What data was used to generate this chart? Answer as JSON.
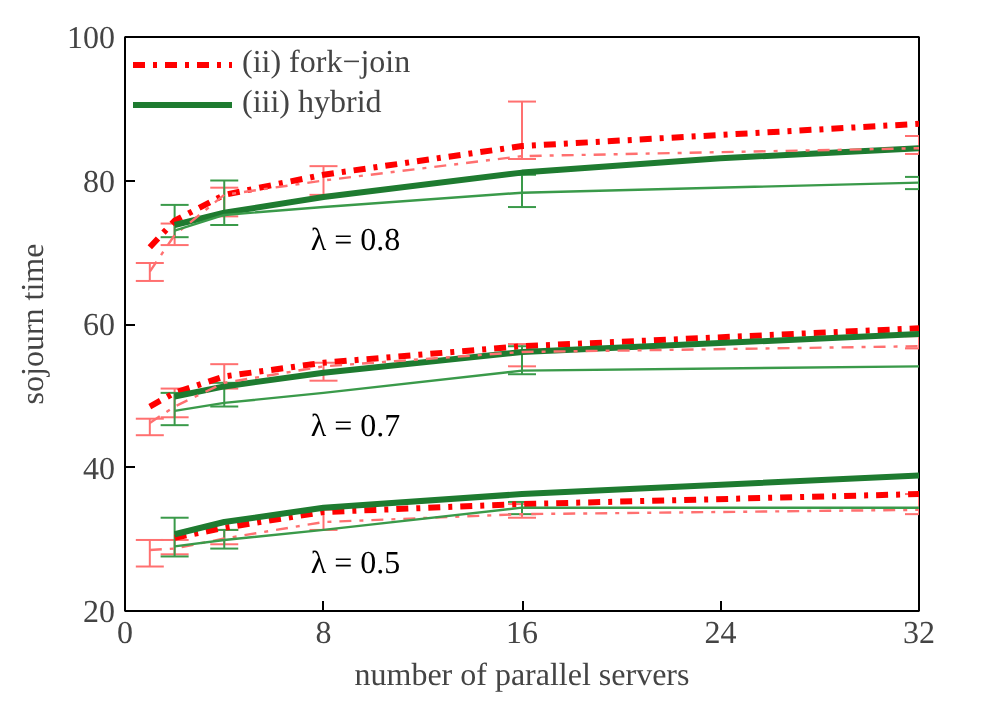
{
  "chart_data": {
    "type": "line",
    "xlabel": "number of parallel servers",
    "ylabel": "sojourn time",
    "xlim": [
      0,
      32
    ],
    "ylim": [
      20,
      100
    ],
    "xticks": [
      0,
      8,
      16,
      24,
      32
    ],
    "yticks": [
      20,
      40,
      60,
      80,
      100
    ],
    "grid": false,
    "legend": "top left",
    "marker": "none",
    "series": [
      {
        "name": "(ii) fork−join",
        "color": "#ff0000",
        "line_style": "dashdot",
        "x": [
          1,
          2,
          4,
          8,
          16,
          32
        ],
        "values": [
          70.7,
          74.4,
          78,
          80.8,
          84.8,
          87.9
        ]
      },
      {
        "name": "(iii) hybrid",
        "color": "#1e7b30",
        "line_style": "solid",
        "x": [
          2,
          4,
          8,
          16,
          24,
          32
        ],
        "values": [
          73.8,
          75.5,
          77.7,
          81.1,
          83.1,
          84.5
        ]
      },
      {
        "color": "#ff7070",
        "line_style": "dashdot",
        "x": [
          1,
          2,
          4,
          8,
          16,
          32
        ],
        "values": [
          67.3,
          72.4,
          78,
          80,
          83.4,
          84.5
        ],
        "errors": [
          [
            66,
            68.5
          ],
          [
            71,
            74
          ],
          [
            75,
            79
          ],
          [
            78,
            82
          ],
          [
            83,
            91
          ],
          [
            83.7,
            86.2
          ]
        ]
      },
      {
        "color": "#3a9a4a",
        "line_style": "solid",
        "x": [
          2,
          4,
          8,
          16,
          32
        ],
        "values": [
          73,
          75.2,
          76.3,
          78.3,
          79.7
        ],
        "errors": [
          [
            72.1,
            76.6
          ],
          [
            73.8,
            80
          ],
          null,
          [
            76.3,
            80.8
          ],
          [
            78.8,
            80.5
          ]
        ]
      },
      {
        "color": "#ff0000",
        "line_style": "dashdot",
        "x": [
          1,
          2,
          4,
          8,
          16,
          32
        ],
        "values": [
          48.5,
          50.4,
          52.7,
          54.6,
          56.9,
          59.4
        ]
      },
      {
        "color": "#1e7b30",
        "line_style": "solid",
        "x": [
          2,
          4,
          8,
          16,
          32
        ],
        "values": [
          49.9,
          51.3,
          53.2,
          56.1,
          58.6
        ]
      },
      {
        "color": "#ff7070",
        "line_style": "dashdot",
        "x": [
          1,
          2,
          4,
          8,
          16,
          32
        ],
        "values": [
          46.2,
          48.5,
          51.8,
          54.1,
          56.1,
          56.9
        ],
        "errors": [
          [
            44.5,
            46.8
          ],
          [
            47,
            51
          ],
          [
            51,
            54.4
          ],
          [
            52.1,
            54.6
          ],
          [
            54.1,
            57.2
          ],
          [
            56.6,
            58.3
          ]
        ]
      },
      {
        "color": "#3a9a4a",
        "line_style": "solid",
        "x": [
          2,
          4,
          8,
          16,
          32
        ],
        "values": [
          47.9,
          49,
          50.4,
          53.5,
          54.1
        ],
        "errors": [
          [
            45.9,
            50.4
          ],
          [
            48.5,
            51.8
          ],
          null,
          [
            53,
            56.9
          ],
          null
        ]
      },
      {
        "color": "#ff0000",
        "line_style": "dashdot",
        "x": [
          2,
          4,
          8,
          16,
          32
        ],
        "values": [
          30.2,
          31.6,
          33.8,
          34.9,
          36.3
        ]
      },
      {
        "color": "#1e7b30",
        "line_style": "solid",
        "x": [
          2,
          4,
          8,
          16,
          32
        ],
        "values": [
          30.7,
          32.4,
          34.4,
          36.3,
          38.9
        ]
      },
      {
        "color": "#ff7070",
        "line_style": "dashdot",
        "x": [
          1,
          2,
          4,
          8,
          16,
          32
        ],
        "values": [
          28.5,
          28.7,
          30.1,
          32.4,
          33.5,
          34.1
        ],
        "errors": [
          [
            26.2,
            29.9
          ],
          [
            27.9,
            29.9
          ],
          [
            29.3,
            31.3
          ],
          [
            31.3,
            34.1
          ],
          [
            33,
            34.9
          ],
          [
            33.5,
            36.3
          ]
        ]
      },
      {
        "color": "#3a9a4a",
        "line_style": "solid",
        "x": [
          2,
          4,
          8,
          16,
          32
        ],
        "values": [
          29,
          29.9,
          31.3,
          34.4,
          34.4
        ],
        "errors": [
          [
            27.6,
            33
          ],
          [
            28.7,
            31.3
          ],
          null,
          [
            33.5,
            35.2
          ],
          null
        ]
      }
    ],
    "annotations": [
      "λ = 0.8",
      "λ = 0.7",
      "λ = 0.5"
    ]
  }
}
